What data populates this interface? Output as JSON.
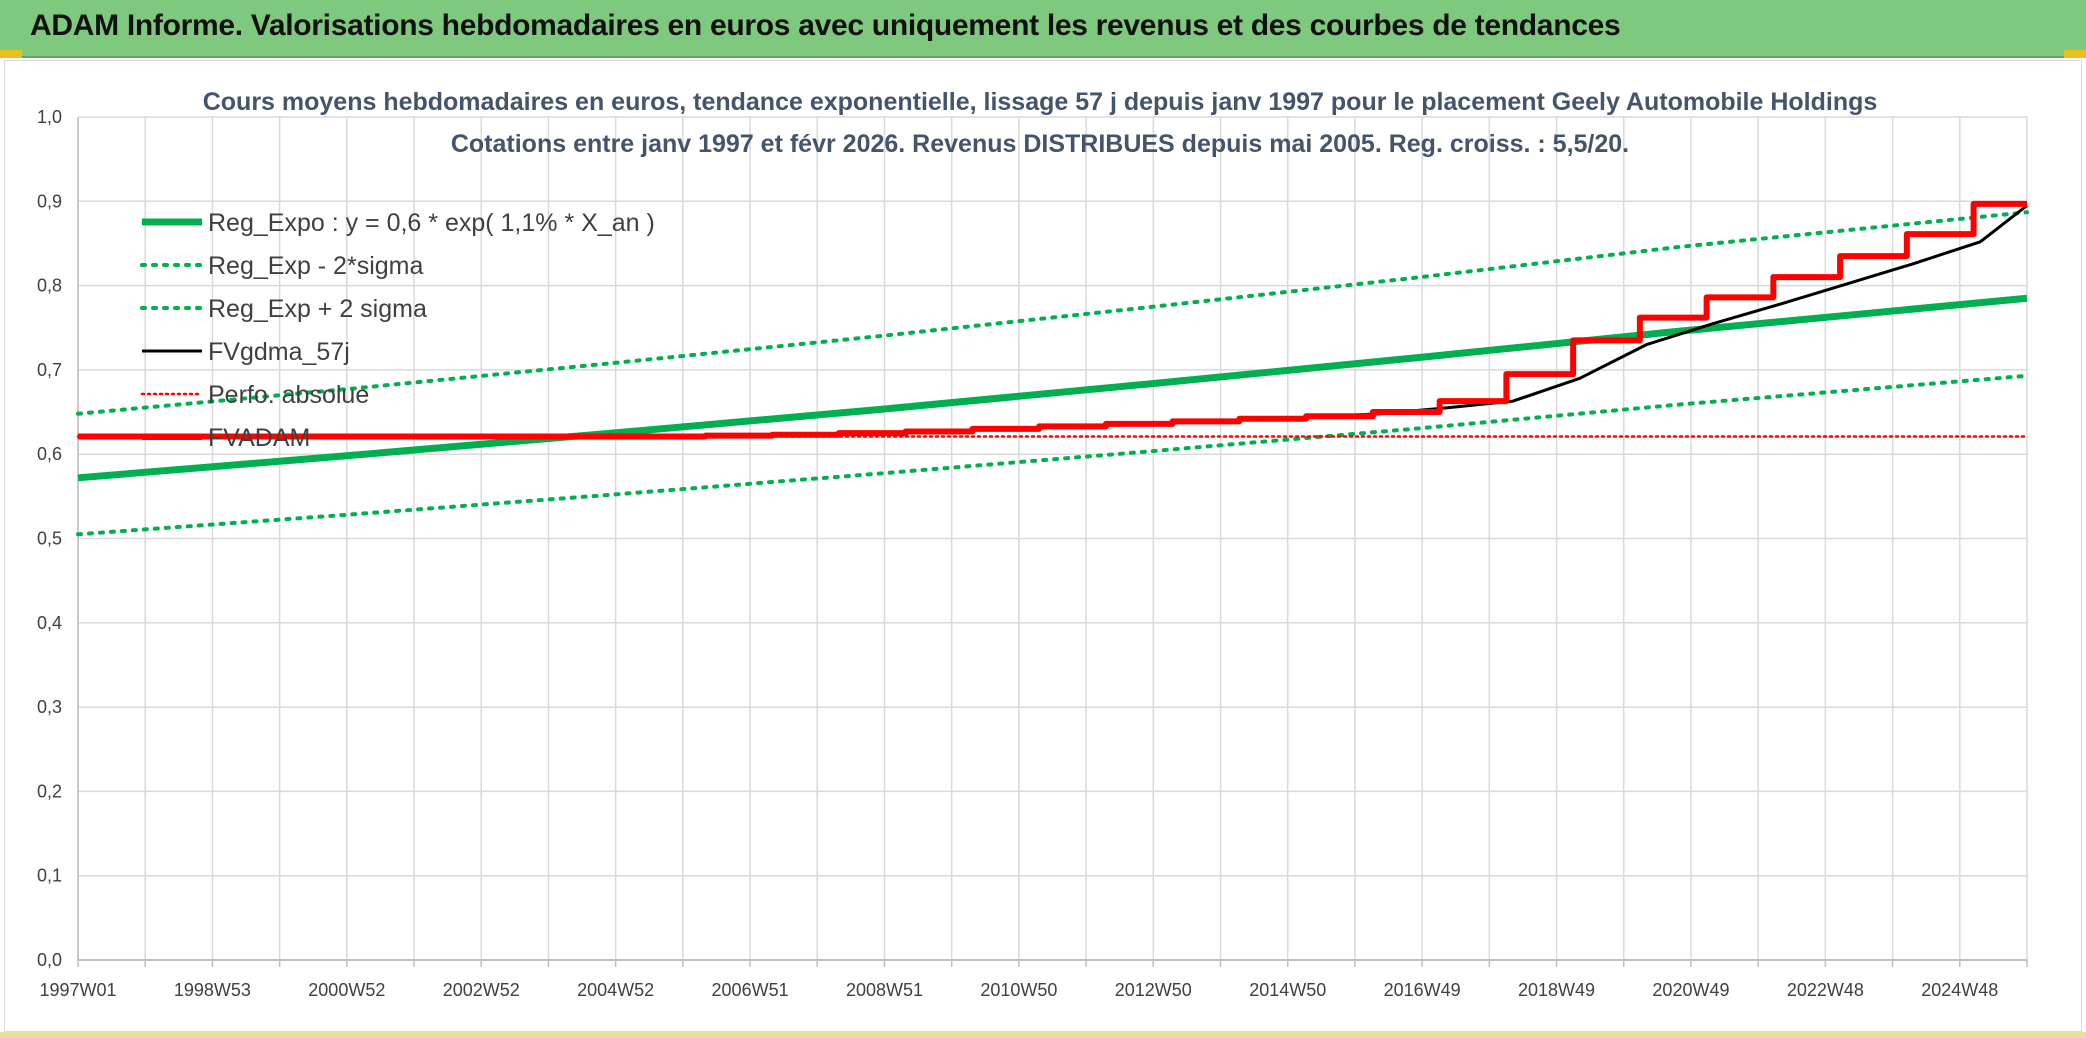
{
  "banner": {
    "title": "ADAM Informe. Valorisations hebdomadaires en euros avec uniquement les revenus et des courbes de tendances"
  },
  "chart_data": {
    "type": "line",
    "title_line1": "Cours moyens hebdomadaires en euros, tendance exponentielle, lissage 57 j depuis janv 1997 pour le placement Geely Automobile Holdings",
    "title_line2": "Cotations entre janv 1997 et févr 2026. Revenus DISTRIBUES depuis mai 2005. Reg. croiss. : 5,5/20.",
    "xlabel": "",
    "ylabel": "",
    "x_tick_labels": [
      "1997W01",
      "1998W53",
      "2000W52",
      "2002W52",
      "2004W52",
      "2006W51",
      "2008W51",
      "2010W50",
      "2012W50",
      "2014W50",
      "2016W49",
      "2018W49",
      "2020W49",
      "2022W48",
      "2024W48"
    ],
    "y_tick_labels": [
      "0,0",
      "0,1",
      "0,2",
      "0,3",
      "0,4",
      "0,5",
      "0,6",
      "0,7",
      "0,8",
      "0,9",
      "1,0"
    ],
    "xlim": [
      1997.0,
      2026.2
    ],
    "ylim": [
      0,
      1
    ],
    "grid": true,
    "legend_position": "top-left",
    "colors": {
      "reg_expo": "#00b050",
      "sigma": "#00b050",
      "fvgdma": "#000000",
      "perfo": "#ff0000",
      "fvadam": "#ff0000",
      "grid": "#d9d9d9",
      "axis": "#bfbfbf"
    },
    "series": [
      {
        "name": "Reg_Expo : y = 0,6 * exp( 1,1% *  X_an )",
        "style": "solid-thick",
        "x": [
          1997.0,
          2001.0,
          2005.0,
          2009.0,
          2013.0,
          2017.0,
          2021.0,
          2026.2
        ],
        "values": [
          0.572,
          0.598,
          0.625,
          0.653,
          0.683,
          0.714,
          0.746,
          0.785
        ]
      },
      {
        "name": "Reg_Exp - 2*sigma",
        "style": "dotted",
        "x": [
          1997.0,
          2001.0,
          2005.0,
          2009.0,
          2013.0,
          2017.0,
          2021.0,
          2026.2
        ],
        "values": [
          0.505,
          0.528,
          0.552,
          0.577,
          0.603,
          0.63,
          0.659,
          0.693
        ]
      },
      {
        "name": "Reg_Exp + 2 sigma",
        "style": "dotted",
        "x": [
          1997.0,
          2001.0,
          2005.0,
          2009.0,
          2013.0,
          2017.0,
          2021.0,
          2026.2
        ],
        "values": [
          0.648,
          0.677,
          0.708,
          0.74,
          0.774,
          0.809,
          0.846,
          0.887
        ]
      },
      {
        "name": "FVgdma_57j",
        "style": "solid",
        "x": [
          1997.0,
          2005.4,
          2006.5,
          2007.5,
          2008.5,
          2009.5,
          2010.5,
          2011.5,
          2012.5,
          2013.5,
          2014.5,
          2015.5,
          2016.5,
          2017.5,
          2018.5,
          2019.5,
          2020.5,
          2021.5,
          2022.5,
          2023.5,
          2024.5,
          2025.5,
          2026.2
        ],
        "values": [
          0.621,
          0.621,
          0.622,
          0.623,
          0.624,
          0.626,
          0.629,
          0.632,
          0.635,
          0.638,
          0.641,
          0.644,
          0.648,
          0.655,
          0.663,
          0.69,
          0.73,
          0.755,
          0.778,
          0.802,
          0.826,
          0.852,
          0.895
        ]
      },
      {
        "name": "Perfo. absolue",
        "style": "dotted",
        "x": [
          1997.0,
          2026.2
        ],
        "values": [
          0.621,
          0.621
        ]
      },
      {
        "name": "FVADAM",
        "style": "step-thick",
        "x": [
          1997.0,
          2005.4,
          2006.4,
          2007.4,
          2008.4,
          2009.4,
          2010.4,
          2011.4,
          2012.4,
          2013.4,
          2014.4,
          2015.4,
          2016.4,
          2017.4,
          2018.4,
          2019.4,
          2020.4,
          2021.4,
          2022.4,
          2023.4,
          2024.4,
          2025.4,
          2026.2
        ],
        "values": [
          0.621,
          0.621,
          0.622,
          0.623,
          0.625,
          0.627,
          0.63,
          0.633,
          0.636,
          0.639,
          0.642,
          0.645,
          0.65,
          0.663,
          0.695,
          0.735,
          0.762,
          0.786,
          0.81,
          0.835,
          0.861,
          0.897,
          0.897
        ]
      }
    ]
  }
}
